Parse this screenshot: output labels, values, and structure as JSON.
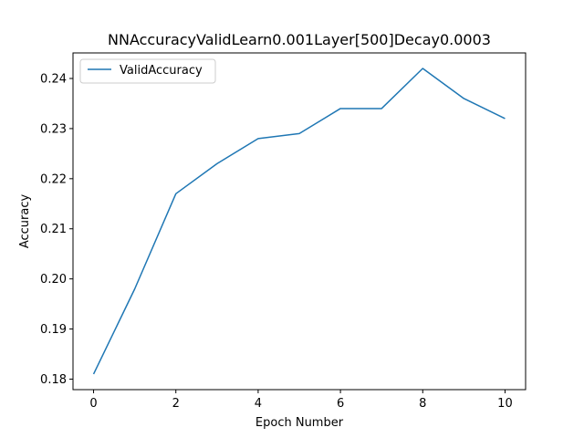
{
  "chart_data": {
    "type": "line",
    "title": "NNAccuracyValidLearn0.001Layer[500]Decay0.0003",
    "xlabel": "Epoch Number",
    "ylabel": "Accuracy",
    "x": [
      0,
      1,
      2,
      3,
      4,
      5,
      6,
      7,
      8,
      9,
      10
    ],
    "series": [
      {
        "name": "ValidAccuracy",
        "color": "#1f77b4",
        "values": [
          0.181,
          0.198,
          0.217,
          0.223,
          0.228,
          0.229,
          0.234,
          0.234,
          0.242,
          0.236,
          0.232
        ]
      }
    ],
    "xlim": [
      -0.5,
      10.5
    ],
    "ylim": [
      0.1779,
      0.2451
    ],
    "xticks": [
      0,
      2,
      4,
      6,
      8,
      10
    ],
    "xtick_labels": [
      "0",
      "2",
      "4",
      "6",
      "8",
      "10"
    ],
    "yticks": [
      0.18,
      0.19,
      0.2,
      0.21,
      0.22,
      0.23,
      0.24
    ],
    "ytick_labels": [
      "0.18",
      "0.19",
      "0.20",
      "0.21",
      "0.22",
      "0.23",
      "0.24"
    ],
    "grid": false,
    "legend_position": "top-left"
  }
}
